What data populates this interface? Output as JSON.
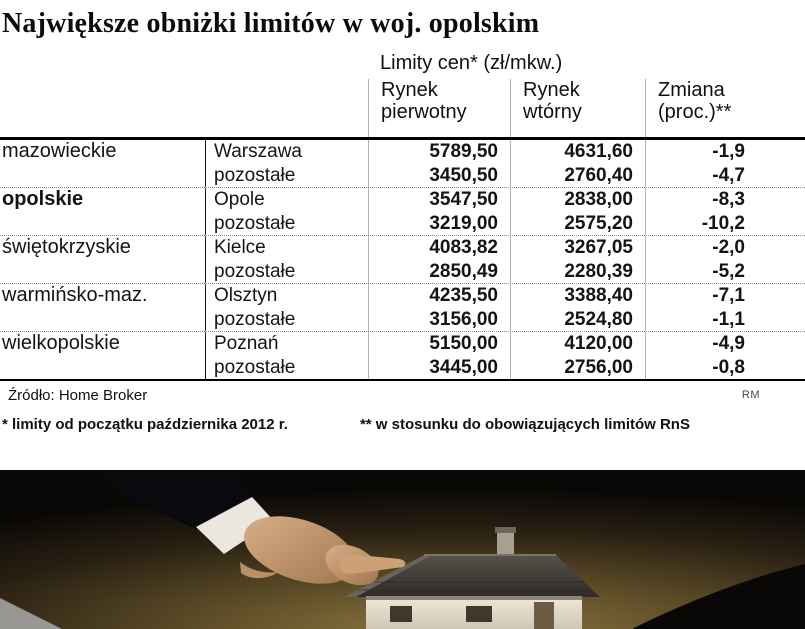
{
  "title": "Największe obniżki limitów w woj. opolskim",
  "table": {
    "unit_header": "Limity cen* (zł/mkw.)",
    "columns": [
      "Rynek\npierwotny",
      "Rynek\nwtórny",
      "Zmiana\n(proc.)**"
    ]
  },
  "footer": {
    "source": "Źródło: Home Broker",
    "credit": "RM",
    "footnote1": "* limity od początku października 2012 r.",
    "footnote2": "** w stosunku do obowiązujących limitów RnS"
  },
  "colors": {
    "highlight_red": "#e2231a",
    "text": "#141414",
    "rule_black": "#000000",
    "divider_gray": "#b3b3b3"
  },
  "chart_data": {
    "type": "table",
    "title": "Największe obniżki limitów w woj. opolskim",
    "unit_header": "Limity cen* (zł/mkw.)",
    "columns": [
      "",
      "",
      "Rynek pierwotny",
      "Rynek wtórny",
      "Zmiana (proc.)**"
    ],
    "rows": [
      {
        "region": "mazowieckie",
        "highlight": false,
        "entries": [
          {
            "market": "Warszawa",
            "primary": "5789,50",
            "secondary": "4631,60",
            "change": "-1,9"
          },
          {
            "market": "pozostałe",
            "primary": "3450,50",
            "secondary": "2760,40",
            "change": "-4,7"
          }
        ]
      },
      {
        "region": "opolskie",
        "highlight": true,
        "entries": [
          {
            "market": "Opole",
            "primary": "3547,50",
            "secondary": "2838,00",
            "change": "-8,3"
          },
          {
            "market": "pozostałe",
            "primary": "3219,00",
            "secondary": "2575,20",
            "change": "-10,2"
          }
        ]
      },
      {
        "region": "świętokrzyskie",
        "highlight": false,
        "entries": [
          {
            "market": "Kielce",
            "primary": "4083,82",
            "secondary": "3267,05",
            "change": "-2,0"
          },
          {
            "market": "pozostałe",
            "primary": "2850,49",
            "secondary": "2280,39",
            "change": "-5,2"
          }
        ]
      },
      {
        "region": "warmińsko-maz.",
        "highlight": false,
        "entries": [
          {
            "market": "Olsztyn",
            "primary": "4235,50",
            "secondary": "3388,40",
            "change": "-7,1"
          },
          {
            "market": "pozostałe",
            "primary": "3156,00",
            "secondary": "2524,80",
            "change": "-1,1"
          }
        ]
      },
      {
        "region": "wielkopolskie",
        "highlight": false,
        "entries": [
          {
            "market": "Poznań",
            "primary": "5150,00",
            "secondary": "4120,00",
            "change": "-4,9"
          },
          {
            "market": "pozostałe",
            "primary": "3445,00",
            "secondary": "2756,00",
            "change": "-0,8"
          }
        ]
      }
    ],
    "source": "Źródło: Home Broker",
    "credit": "RM",
    "footnotes": [
      "* limity od początku października 2012 r.",
      "** w stosunku do obowiązujących limitów RnS"
    ]
  }
}
